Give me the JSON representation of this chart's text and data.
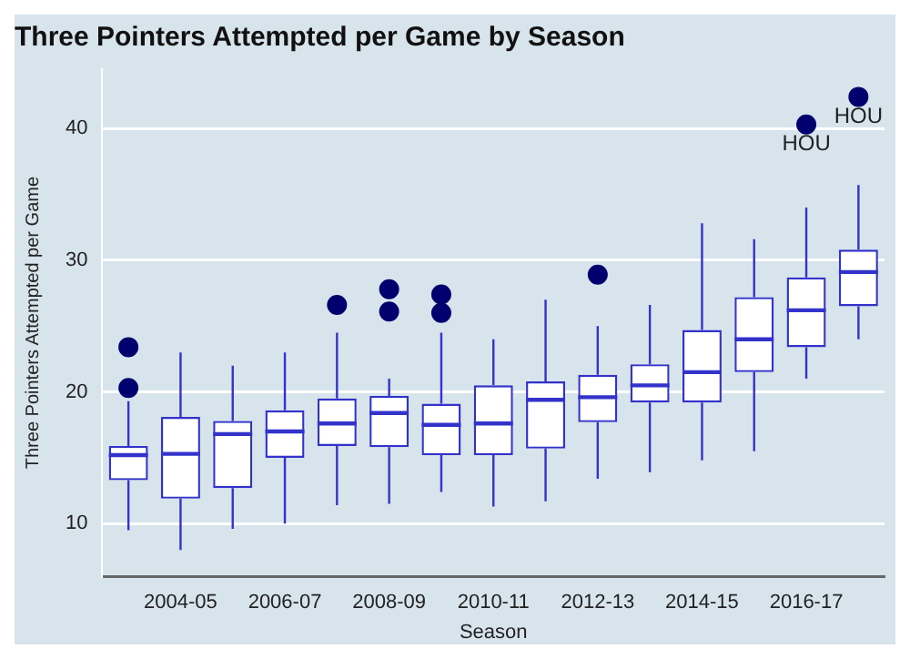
{
  "chart_data": {
    "type": "box",
    "title": "Three Pointers Attempted per Game by Season",
    "xlabel": "Season",
    "ylabel": "Three Pointers Attempted per Game",
    "color": "#3333cc",
    "categories": [
      null,
      "2004-05",
      null,
      "2006-07",
      null,
      "2008-09",
      null,
      "2010-11",
      null,
      "2012-13",
      null,
      "2014-15",
      null,
      "2016-17",
      null
    ],
    "boxes": [
      {
        "low": 9.5,
        "q1": 13.3,
        "median": 15.2,
        "q3": 15.9,
        "high": 19.3,
        "outliers": [
          20.3,
          23.4
        ]
      },
      {
        "low": 8.0,
        "q1": 11.9,
        "median": 15.3,
        "q3": 18.1,
        "high": 23
      },
      {
        "low": 9.6,
        "q1": 12.7,
        "median": 16.8,
        "q3": 17.8,
        "high": 22
      },
      {
        "low": 10.0,
        "q1": 15.0,
        "median": 17.0,
        "q3": 18.6,
        "high": 23
      },
      {
        "low": 11.4,
        "q1": 15.9,
        "median": 17.6,
        "q3": 19.5,
        "high": 24.5,
        "outliers": [
          26.6
        ]
      },
      {
        "low": 11.5,
        "q1": 15.8,
        "median": 18.4,
        "q3": 19.7,
        "high": 21.0,
        "outliers": [
          26.1,
          27.8
        ]
      },
      {
        "low": 12.4,
        "q1": 15.2,
        "median": 17.5,
        "q3": 19.1,
        "high": 24.5,
        "outliers": [
          26.0,
          27.4
        ]
      },
      {
        "low": 11.3,
        "q1": 15.2,
        "median": 17.6,
        "q3": 20.5,
        "high": 24
      },
      {
        "low": 11.7,
        "q1": 15.7,
        "median": 19.4,
        "q3": 20.8,
        "high": 27.0
      },
      {
        "low": 13.4,
        "q1": 17.7,
        "median": 19.6,
        "q3": 21.3,
        "high": 25,
        "outliers": [
          28.9
        ]
      },
      {
        "low": 13.9,
        "q1": 19.2,
        "median": 20.5,
        "q3": 22.1,
        "high": 26.6
      },
      {
        "low": 14.8,
        "q1": 19.2,
        "median": 21.5,
        "q3": 24.7,
        "high": 32.8
      },
      {
        "low": 15.5,
        "q1": 21.5,
        "median": 24.0,
        "q3": 27.2,
        "high": 31.6
      },
      {
        "low": 21.0,
        "q1": 23.4,
        "median": 26.2,
        "q3": 28.7,
        "high": 34.0,
        "outliers": [
          40.3
        ]
      },
      {
        "low": 24.0,
        "q1": 26.5,
        "median": 29.1,
        "q3": 30.8,
        "high": 35.7,
        "outliers": [
          42.4
        ]
      }
    ],
    "annotations": [
      "HOU",
      "HOU"
    ],
    "ylim": [
      6,
      44.5
    ],
    "yticks": [
      10,
      20,
      30,
      40
    ],
    "grid": "y",
    "legend": false
  }
}
